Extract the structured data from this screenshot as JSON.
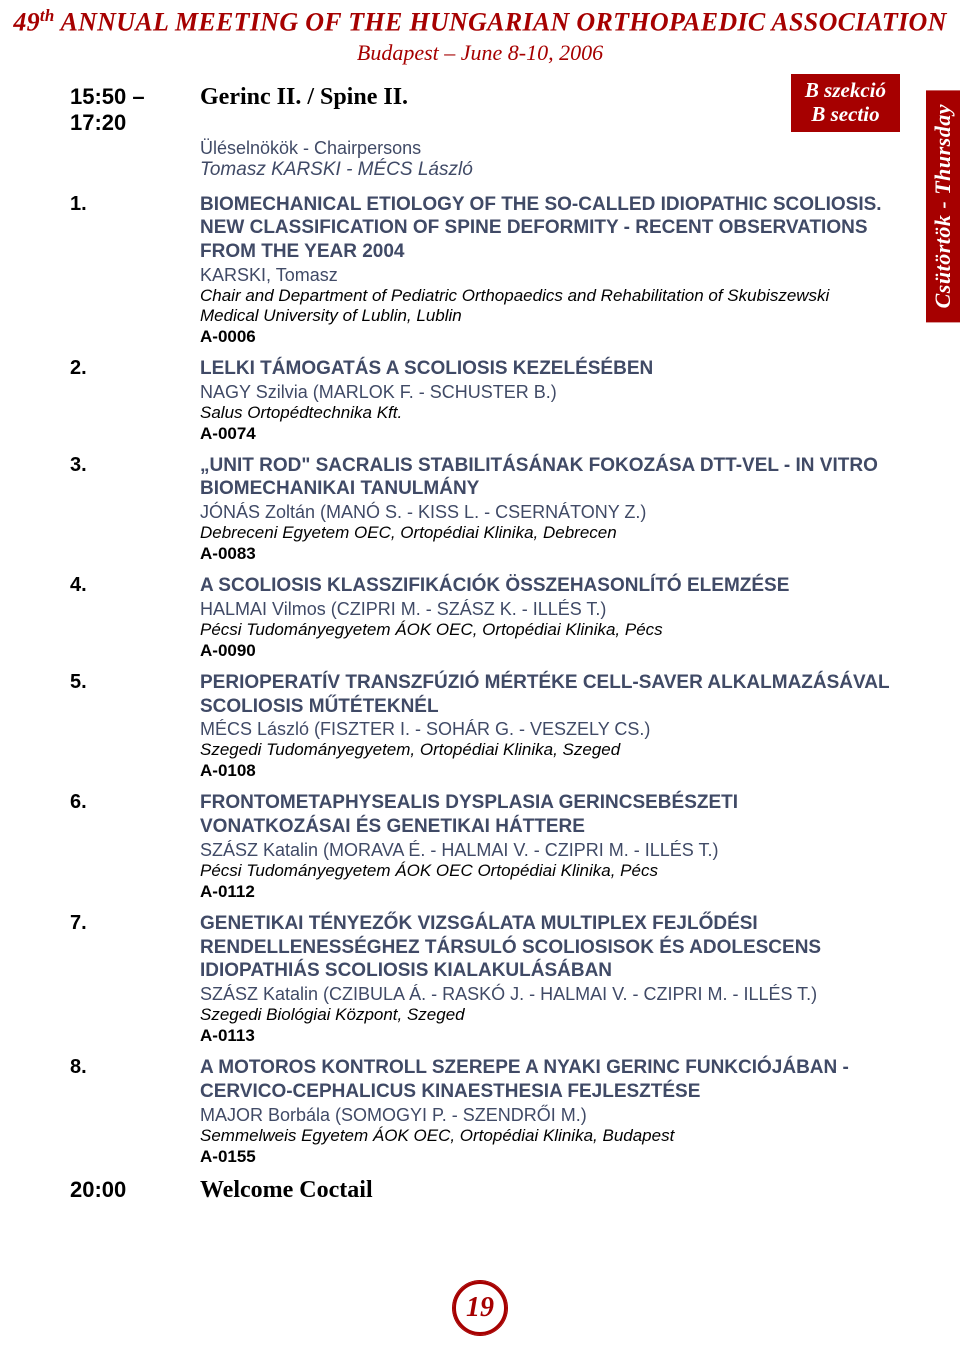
{
  "colors": {
    "accent": "#a60000",
    "muted": "#404a66",
    "text": "#000000",
    "bg": "#ffffff"
  },
  "header": {
    "title_prefix": "49",
    "title_ord": "th",
    "title_rest": " ANNUAL MEETING OF THE HUNGARIAN ORTHOPAEDIC ASSOCIATION",
    "subtitle": "Budapest – June 8-10, 2006"
  },
  "badge": {
    "line1": "B szekció",
    "line2": "B sectio"
  },
  "side_tab": "Csütörtök - Thursday",
  "session": {
    "time": "15:50 – 17:20",
    "title": "Gerinc II. / Spine II.",
    "chair_label": "Üléselnökök - Chairpersons",
    "chair_names": "Tomasz KARSKI - MÉCS László"
  },
  "items": [
    {
      "num": "1.",
      "title": "BIOMECHANICAL ETIOLOGY OF THE SO-CALLED IDIOPATHIC SCOLIOSIS. NEW CLASSIFICATION OF SPINE DEFORMITY - RECENT OBSERVATIONS FROM THE YEAR 2004",
      "authors": "KARSKI, Tomasz",
      "affil": "Chair and Department of Pediatric Orthopaedics and Rehabilitation of Skubiszewski Medical University of Lublin, Lublin",
      "code": "A-0006"
    },
    {
      "num": "2.",
      "title": "LELKI TÁMOGATÁS A SCOLIOSIS KEZELÉSÉBEN",
      "authors": "NAGY Szilvia (MARLOK F. - SCHUSTER B.)",
      "affil": "Salus Ortopédtechnika Kft.",
      "code": "A-0074"
    },
    {
      "num": "3.",
      "title": "„UNIT ROD\" SACRALIS STABILITÁSÁNAK FOKOZÁSA DTT-VEL - IN VITRO BIOMECHANIKAI TANULMÁNY",
      "authors": "JÓNÁS Zoltán (MANÓ S. - KISS L. - CSERNÁTONY Z.)",
      "affil": "Debreceni Egyetem OEC, Ortopédiai Klinika, Debrecen",
      "code": "A-0083"
    },
    {
      "num": "4.",
      "title": "A SCOLIOSIS KLASSZIFIKÁCIÓK ÖSSZEHASONLÍTÓ ELEMZÉSE",
      "authors": "HALMAI Vilmos (CZIPRI M. - SZÁSZ K. - ILLÉS T.)",
      "affil": "Pécsi Tudományegyetem ÁOK OEC, Ortopédiai Klinika, Pécs",
      "code": "A-0090"
    },
    {
      "num": "5.",
      "title": "PERIOPERATÍV TRANSZFÚZIÓ MÉRTÉKE CELL-SAVER ALKALMAZÁSÁVAL SCOLIOSIS MŰTÉTEKNÉL",
      "authors": "MÉCS László (FISZTER I. - SOHÁR G. - VESZELY CS.)",
      "affil": "Szegedi Tudományegyetem, Ortopédiai Klinika, Szeged",
      "code": "A-0108"
    },
    {
      "num": "6.",
      "title": "FRONTOMETAPHYSEALIS DYSPLASIA GERINCSEBÉSZETI VONATKOZÁSAI ÉS GENETIKAI HÁTTERE",
      "authors": "SZÁSZ Katalin (MORAVA É. - HALMAI V. - CZIPRI M. - ILLÉS T.)",
      "affil": "Pécsi Tudományegyetem ÁOK OEC Ortopédiai Klinika, Pécs",
      "code": "A-0112"
    },
    {
      "num": "7.",
      "title": "GENETIKAI TÉNYEZŐK VIZSGÁLATA MULTIPLEX FEJLŐDÉSI RENDELLENESSÉGHEZ TÁRSULÓ SCOLIOSISOK ÉS ADOLESCENS IDIOPATHIÁS SCOLIOSIS KIALAKULÁSÁBAN",
      "authors": "SZÁSZ Katalin (CZIBULA Á. - RASKÓ J. - HALMAI V. - CZIPRI M. - ILLÉS T.)",
      "affil": "Szegedi Biológiai Központ, Szeged",
      "code": "A-0113"
    },
    {
      "num": "8.",
      "title": "A MOTOROS KONTROLL SZEREPE A NYAKI GERINC FUNKCIÓJÁBAN - CERVICO-CEPHALICUS KINAESTHESIA FEJLESZTÉSE",
      "authors": "MAJOR Borbála (SOMOGYI P. - SZENDRŐI M.)",
      "affil": "Semmelweis Egyetem ÁOK OEC, Ortopédiai Klinika, Budapest",
      "code": "A-0155"
    }
  ],
  "closing": {
    "time": "20:00",
    "label": "Welcome Coctail"
  },
  "page_number": "19"
}
